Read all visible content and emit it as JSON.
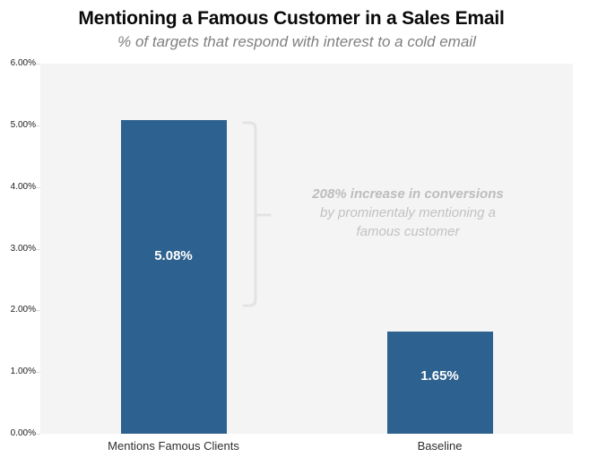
{
  "header": {
    "title": "Mentioning a Famous Customer in a Sales Email",
    "subtitle": "% of targets that respond with interest to a cold email"
  },
  "annotation": {
    "line1": "208% increase in conversions",
    "line2": "by prominentaly mentioning a",
    "line3": "famous customer"
  },
  "chart_data": {
    "type": "bar",
    "title": "Mentioning a Famous Customer in a Sales Email",
    "subtitle": "% of targets that respond with interest to a cold email",
    "categories": [
      "Mentions Famous Clients",
      "Baseline"
    ],
    "values": [
      5.08,
      1.65
    ],
    "value_labels": [
      "5.08%",
      "1.65%"
    ],
    "xlabel": "",
    "ylabel": "",
    "ylim": [
      0,
      6
    ],
    "ytick_labels": [
      "0.00%",
      "1.00%",
      "2.00%",
      "3.00%",
      "4.00%",
      "5.00%",
      "6.00%"
    ],
    "grid": false,
    "legend": false,
    "annotation": "208% increase in conversions by prominentaly mentioning a famous customer",
    "bar_color": "#2d618f",
    "plot_background": "#f4f4f4",
    "value_label_color": "#ffffff",
    "annotation_color": "#c2c2c2",
    "brace_color": "#e3e3e3"
  }
}
